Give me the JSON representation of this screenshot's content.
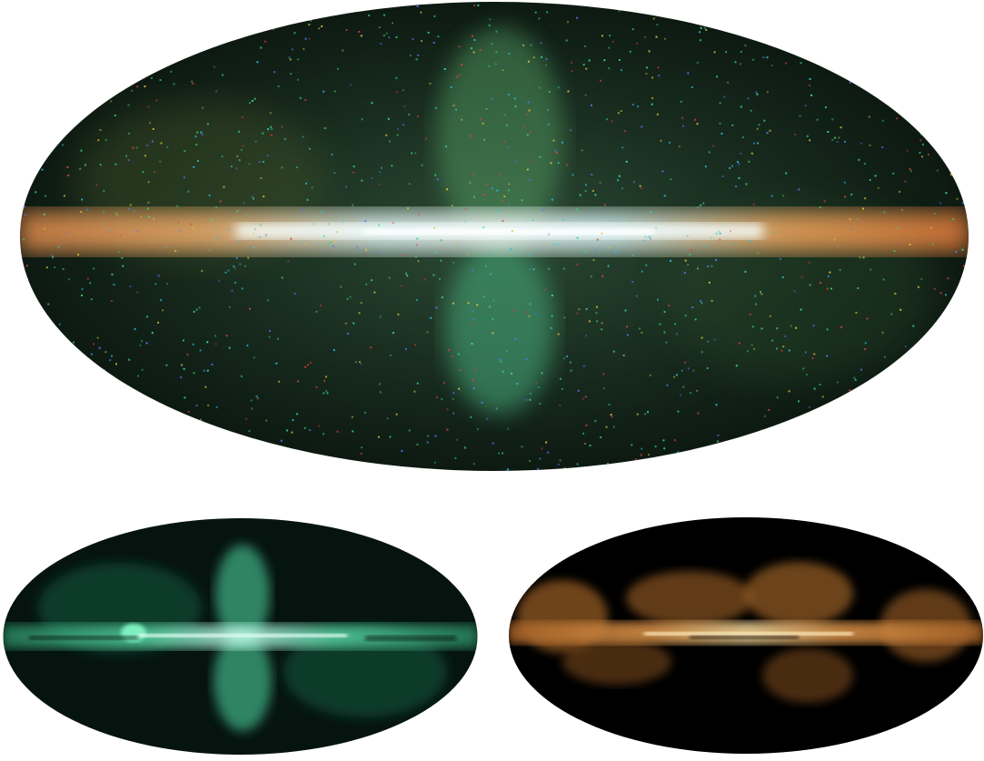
{
  "figure": {
    "panels": [
      {
        "id": "combined",
        "projection": "mollweide",
        "colormap": "rgb-composite",
        "colors": {
          "background": "#0c1c14",
          "accent_green": "#3cc58e",
          "accent_orange": "#f0a050",
          "accent_white": "#eaffff"
        }
      },
      {
        "id": "component-green",
        "projection": "mollweide",
        "colormap": "green",
        "colors": {
          "background": "#000000",
          "structure": "#3fc093",
          "core": "#b8ffe8"
        }
      },
      {
        "id": "component-orange",
        "projection": "mollweide",
        "colormap": "orange",
        "colors": {
          "background": "#000000",
          "structure": "#d88a40",
          "core": "#ffd890"
        }
      }
    ]
  }
}
